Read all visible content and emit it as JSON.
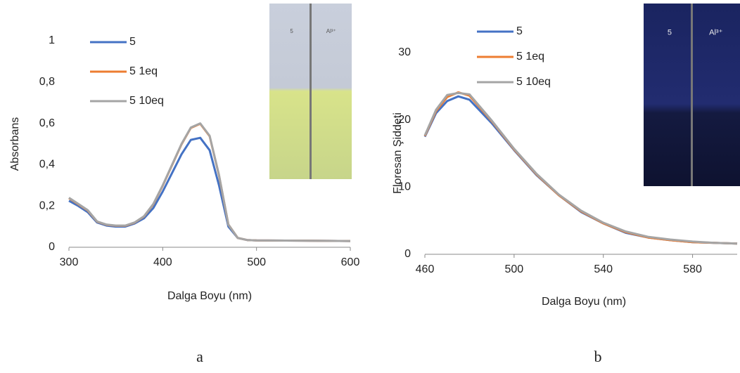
{
  "chart_data": [
    {
      "type": "line",
      "xlabel": "Dalga Boyu (nm)",
      "ylabel": "Absorbans",
      "caption": "a",
      "inset_labels": [
        "5",
        "Al³⁺"
      ],
      "x": [
        300,
        310,
        320,
        330,
        340,
        350,
        360,
        370,
        380,
        390,
        400,
        410,
        420,
        430,
        440,
        450,
        460,
        470,
        480,
        490,
        500,
        550,
        600
      ],
      "xlim": [
        300,
        600
      ],
      "xticks": [
        300,
        400,
        500,
        600
      ],
      "ylim": [
        0,
        1
      ],
      "yticks": [
        0,
        {
          "value": 0.2,
          "label": "0,2"
        },
        {
          "value": 0.4,
          "label": "0,4"
        },
        {
          "value": 0.6,
          "label": "0,6"
        },
        {
          "value": 0.8,
          "label": "0,8"
        },
        1
      ],
      "series": [
        {
          "name": "5",
          "color": "#4472c4",
          "values": [
            0.225,
            0.2,
            0.17,
            0.12,
            0.105,
            0.1,
            0.1,
            0.115,
            0.14,
            0.19,
            0.27,
            0.36,
            0.45,
            0.52,
            0.53,
            0.47,
            0.3,
            0.1,
            0.045,
            0.035,
            0.033,
            0.032,
            0.03
          ]
        },
        {
          "name": "5 1eq",
          "color": "#ed7d31",
          "values": [
            0.238,
            0.208,
            0.178,
            0.124,
            0.109,
            0.104,
            0.104,
            0.119,
            0.149,
            0.208,
            0.298,
            0.398,
            0.498,
            0.578,
            0.598,
            0.538,
            0.348,
            0.11,
            0.045,
            0.035,
            0.033,
            0.032,
            0.03
          ]
        },
        {
          "name": "5 10eq",
          "color": "#a5a5a5",
          "values": [
            0.24,
            0.21,
            0.18,
            0.125,
            0.11,
            0.105,
            0.105,
            0.12,
            0.15,
            0.21,
            0.3,
            0.4,
            0.5,
            0.58,
            0.6,
            0.54,
            0.35,
            0.11,
            0.045,
            0.035,
            0.033,
            0.032,
            0.03
          ]
        }
      ]
    },
    {
      "type": "line",
      "xlabel": "Dalga Boyu (nm)",
      "ylabel": "Floresan Şiddeti",
      "caption": "b",
      "inset_labels": [
        "5",
        "Al³⁺"
      ],
      "x": [
        460,
        465,
        470,
        475,
        480,
        490,
        500,
        510,
        520,
        530,
        540,
        550,
        560,
        570,
        580,
        590,
        600
      ],
      "xlim": [
        460,
        600
      ],
      "xticks": [
        460,
        500,
        540,
        580
      ],
      "ylim": [
        0,
        30
      ],
      "yticks": [
        0,
        10,
        20,
        30
      ],
      "series": [
        {
          "name": "5",
          "color": "#4472c4",
          "values": [
            17.5,
            21,
            22.8,
            23.5,
            23,
            19.5,
            15.5,
            11.8,
            8.8,
            6.3,
            4.6,
            3.2,
            2.5,
            2.1,
            1.8,
            1.7,
            1.6
          ]
        },
        {
          "name": "5 1eq",
          "color": "#ed7d31",
          "values": [
            17.6,
            21.3,
            23.4,
            24.1,
            23.6,
            19.8,
            15.6,
            11.9,
            8.8,
            6.4,
            4.6,
            3.3,
            2.5,
            2.1,
            1.8,
            1.7,
            1.6
          ]
        },
        {
          "name": "5 10eq",
          "color": "#a5a5a5",
          "values": [
            17.7,
            21.5,
            23.7,
            24,
            23.8,
            19.9,
            15.7,
            12,
            8.9,
            6.5,
            4.7,
            3.4,
            2.6,
            2.2,
            1.9,
            1.7,
            1.6
          ]
        }
      ]
    }
  ]
}
